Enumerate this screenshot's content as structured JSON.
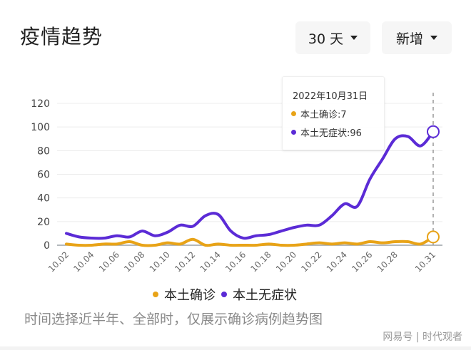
{
  "header": {
    "title": "疫情趋势",
    "range_dropdown": "30 天",
    "mode_dropdown": "新增"
  },
  "tooltip": {
    "date": "2022年10月31日",
    "rows": [
      {
        "label": "本土确诊:7",
        "color": "#E8A317"
      },
      {
        "label": "本土无症状:96",
        "color": "#5B2BD6"
      }
    ]
  },
  "legend": [
    {
      "label": "本土确诊",
      "color": "#E8A317"
    },
    {
      "label": "本土无症状",
      "color": "#5B2BD6"
    }
  ],
  "note": "时间选择近半年、全部时，仅展示确诊病例趋势图",
  "watermark": "网易号 | 时代观者",
  "colors": {
    "confirmed": "#E8A317",
    "asymptomatic": "#5B2BD6",
    "grid": "#ececec",
    "axis": "#9aa0a6"
  },
  "chart_data": {
    "type": "line",
    "title": "疫情趋势",
    "xlabel": "",
    "ylabel": "",
    "ylim": [
      0,
      120
    ],
    "yticks": [
      0,
      20,
      40,
      60,
      80,
      100,
      120
    ],
    "x": [
      "10.02",
      "10.03",
      "10.04",
      "10.05",
      "10.06",
      "10.07",
      "10.08",
      "10.09",
      "10.10",
      "10.11",
      "10.12",
      "10.13",
      "10.14",
      "10.15",
      "10.16",
      "10.17",
      "10.18",
      "10.19",
      "10.20",
      "10.21",
      "10.22",
      "10.23",
      "10.24",
      "10.25",
      "10.26",
      "10.27",
      "10.28",
      "10.29",
      "10.30",
      "10.31"
    ],
    "xtick_labels": [
      "10.02",
      "10.04",
      "10.06",
      "10.08",
      "10.10",
      "10.12",
      "10.14",
      "10.16",
      "10.18",
      "10.20",
      "10.22",
      "10.24",
      "10.26",
      "10.28",
      "10.31"
    ],
    "series": [
      {
        "name": "本土确诊",
        "color": "#E8A317",
        "values": [
          1,
          0,
          0,
          1,
          1,
          3,
          0,
          0,
          2,
          1,
          5,
          0,
          1,
          0,
          0,
          0,
          1,
          0,
          0,
          1,
          2,
          1,
          2,
          1,
          3,
          2,
          3,
          3,
          1,
          7
        ]
      },
      {
        "name": "本土无症状",
        "color": "#5B2BD6",
        "values": [
          10,
          7,
          6,
          6,
          8,
          7,
          12,
          8,
          11,
          17,
          16,
          25,
          26,
          12,
          6,
          8,
          9,
          12,
          15,
          17,
          17,
          25,
          35,
          33,
          56,
          73,
          90,
          92,
          84,
          96
        ]
      }
    ],
    "grid": true,
    "legend_position": "bottom",
    "highlight": {
      "x": "10.31",
      "本土确诊": 7,
      "本土无症状": 96
    }
  }
}
